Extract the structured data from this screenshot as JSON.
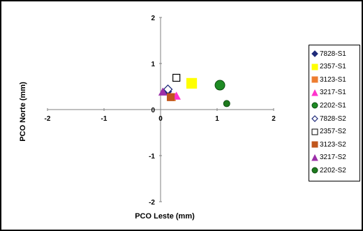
{
  "chart_data": {
    "type": "scatter",
    "title": "",
    "xlabel": "PCO Leste (mm)",
    "ylabel": "PCO Norte (mm)",
    "xlim": [
      -2,
      2
    ],
    "ylim": [
      -2,
      2
    ],
    "x_ticks": [
      "-2",
      "-1",
      "0",
      "1",
      "2"
    ],
    "y_ticks": [
      "2",
      "1",
      "0",
      "-1",
      "-2"
    ],
    "grid": false,
    "legend_position": "right",
    "series": [
      {
        "name": "7828-S1",
        "marker": "diamond",
        "color": "#1f2a7a",
        "filled": true,
        "x": 0.13,
        "y": 0.39
      },
      {
        "name": "2357-S1",
        "marker": "square",
        "color": "#ffff00",
        "filled": true,
        "x": 0.55,
        "y": 0.57
      },
      {
        "name": "3123-S1",
        "marker": "square",
        "color": "#ed7d31",
        "filled": true,
        "x": 0.2,
        "y": 0.27
      },
      {
        "name": "3217-S1",
        "marker": "triangle",
        "color": "#ff33cc",
        "filled": true,
        "x": 0.28,
        "y": 0.29
      },
      {
        "name": "2202-S1",
        "marker": "circle",
        "color": "#1e8b24",
        "filled": true,
        "x": 1.05,
        "y": 0.53
      },
      {
        "name": "7828-S2",
        "marker": "diamond",
        "color": "#1f2a7a",
        "filled": false,
        "x": 0.13,
        "y": 0.44
      },
      {
        "name": "2357-S2",
        "marker": "square",
        "color": "#ffff00",
        "filled": false,
        "x": 0.28,
        "y": 0.69
      },
      {
        "name": "3123-S2",
        "marker": "square",
        "color": "#c0561c",
        "filled": true,
        "x": 0.18,
        "y": 0.27
      },
      {
        "name": "3217-S2",
        "marker": "triangle",
        "color": "#9b2fa8",
        "filled": true,
        "x": 0.04,
        "y": 0.38
      },
      {
        "name": "2202-S2",
        "marker": "circle",
        "color": "#1e7a1e",
        "filled": true,
        "x": 1.17,
        "y": 0.13
      }
    ]
  }
}
